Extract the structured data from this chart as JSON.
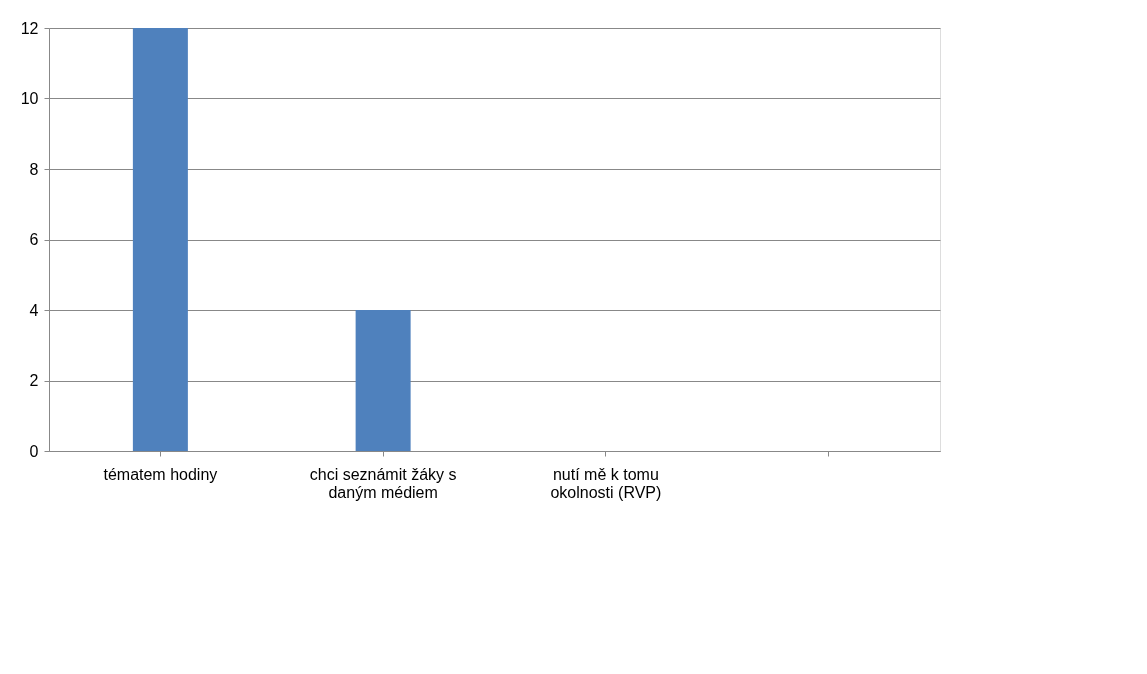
{
  "chart_data": {
    "type": "bar",
    "categories": [
      "tématem hodiny",
      "chci seznámit žáky s daným médiem",
      "nutí mě k tomu okolnosti (RVP)",
      null
    ],
    "values": [
      12,
      4,
      0,
      null
    ],
    "color": "#4f81bd",
    "ylim": [
      0,
      12
    ],
    "yticks": [
      0,
      2,
      4,
      6,
      8,
      10,
      12
    ],
    "grid": "y"
  }
}
